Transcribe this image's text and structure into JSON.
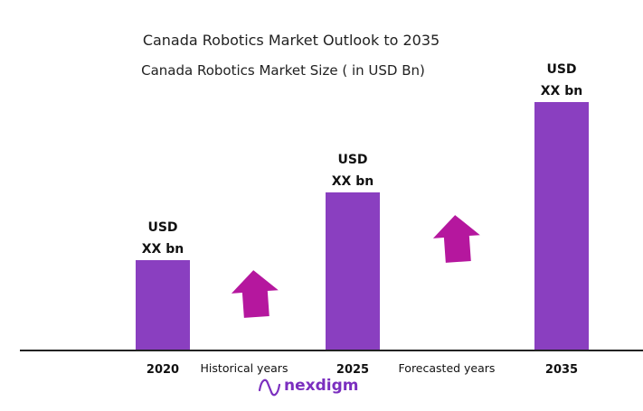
{
  "chart_data": {
    "type": "bar",
    "title": "Canada Robotics Market Outlook to 2035",
    "subtitle": "Canada Robotics Market Size  ( in USD Bn)",
    "categories": [
      "2020",
      "2025",
      "2035"
    ],
    "values": [
      1.0,
      1.75,
      2.75
    ],
    "data_labels": [
      [
        "USD",
        "XX bn"
      ],
      [
        "USD",
        "XX bn"
      ],
      [
        "USD",
        "XX bn"
      ]
    ],
    "period_labels": [
      "Historical years",
      "Forecasted years"
    ],
    "bar_color": "#8a3fc0",
    "arrow_color": "#b5179e",
    "axis_color": "#222222",
    "grid": false,
    "legend": "none"
  },
  "logo": {
    "text": "nexdigm",
    "color": "#7b2fbf"
  }
}
